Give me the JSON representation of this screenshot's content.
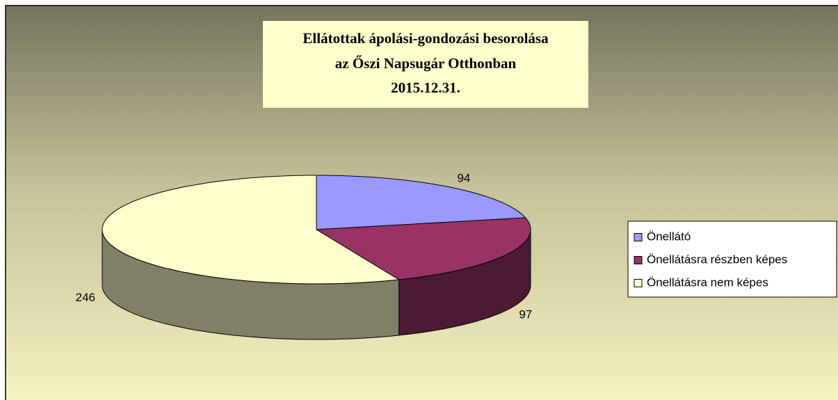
{
  "chart_data": {
    "type": "pie3d",
    "title": [
      "Ellátottak ápolási-gondozási besorolása",
      "az Őszi Napsugár Otthonban",
      "2015.12.31."
    ],
    "categories": [
      "Önellátó",
      "Önellátásra részben képes",
      "Önellátásra nem képes"
    ],
    "values": [
      94,
      97,
      246
    ],
    "colors": [
      "#9999ff",
      "#993366",
      "#ffffcc"
    ],
    "legend": "right"
  }
}
